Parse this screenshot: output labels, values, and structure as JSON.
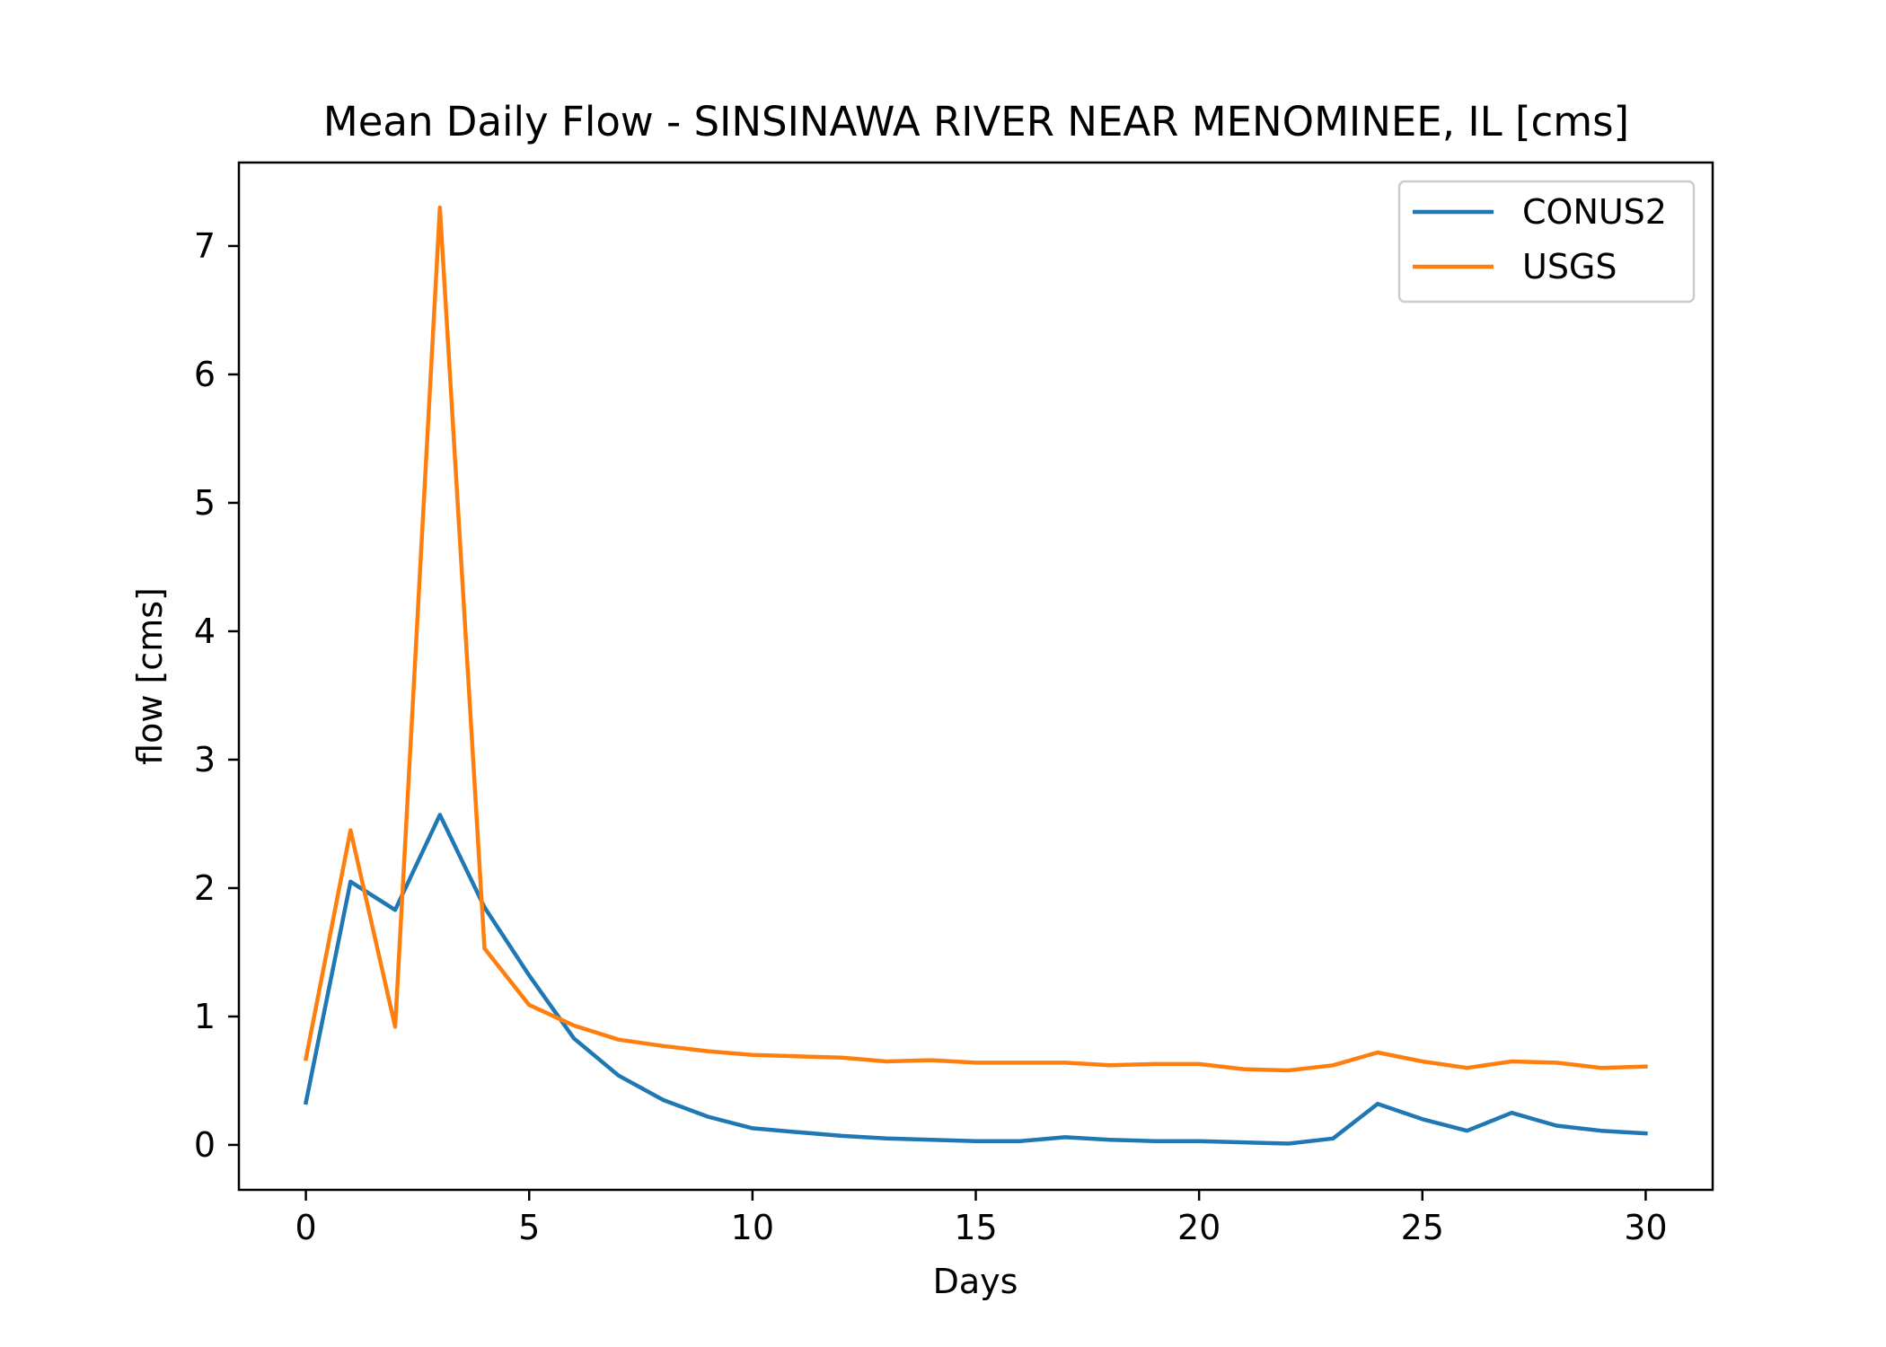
{
  "chart_data": {
    "type": "line",
    "title": "Mean Daily Flow - SINSINAWA RIVER NEAR MENOMINEE, IL [cms]",
    "xlabel": "Days",
    "ylabel": "flow [cms]",
    "xlim": [
      -1.5,
      31.5
    ],
    "ylim": [
      -0.35,
      7.65
    ],
    "xticks": [
      0,
      5,
      10,
      15,
      20,
      25,
      30
    ],
    "xtick_labels": [
      "0",
      "5",
      "10",
      "15",
      "20",
      "25",
      "30"
    ],
    "yticks": [
      0,
      1,
      2,
      3,
      4,
      5,
      6,
      7
    ],
    "ytick_labels": [
      "0",
      "1",
      "2",
      "3",
      "4",
      "5",
      "6",
      "7"
    ],
    "grid": false,
    "legend_position": "top-right",
    "x": [
      0,
      1,
      2,
      3,
      4,
      5,
      6,
      7,
      8,
      9,
      10,
      11,
      12,
      13,
      14,
      15,
      16,
      17,
      18,
      19,
      20,
      21,
      22,
      23,
      24,
      25,
      26,
      27,
      28,
      29,
      30
    ],
    "series": [
      {
        "name": "CONUS2",
        "color": "#1f77b4",
        "values": [
          0.33,
          2.05,
          1.83,
          2.57,
          1.85,
          1.32,
          0.83,
          0.54,
          0.35,
          0.22,
          0.13,
          0.1,
          0.07,
          0.05,
          0.04,
          0.03,
          0.03,
          0.06,
          0.04,
          0.03,
          0.03,
          0.02,
          0.01,
          0.05,
          0.32,
          0.2,
          0.11,
          0.25,
          0.15,
          0.11,
          0.09
        ]
      },
      {
        "name": "USGS",
        "color": "#ff7f0e",
        "values": [
          0.67,
          2.45,
          0.92,
          7.3,
          1.53,
          1.09,
          0.93,
          0.82,
          0.77,
          0.73,
          0.7,
          0.69,
          0.68,
          0.65,
          0.66,
          0.64,
          0.64,
          0.64,
          0.62,
          0.63,
          0.63,
          0.59,
          0.58,
          0.62,
          0.72,
          0.65,
          0.6,
          0.65,
          0.64,
          0.6,
          0.61
        ]
      }
    ]
  }
}
